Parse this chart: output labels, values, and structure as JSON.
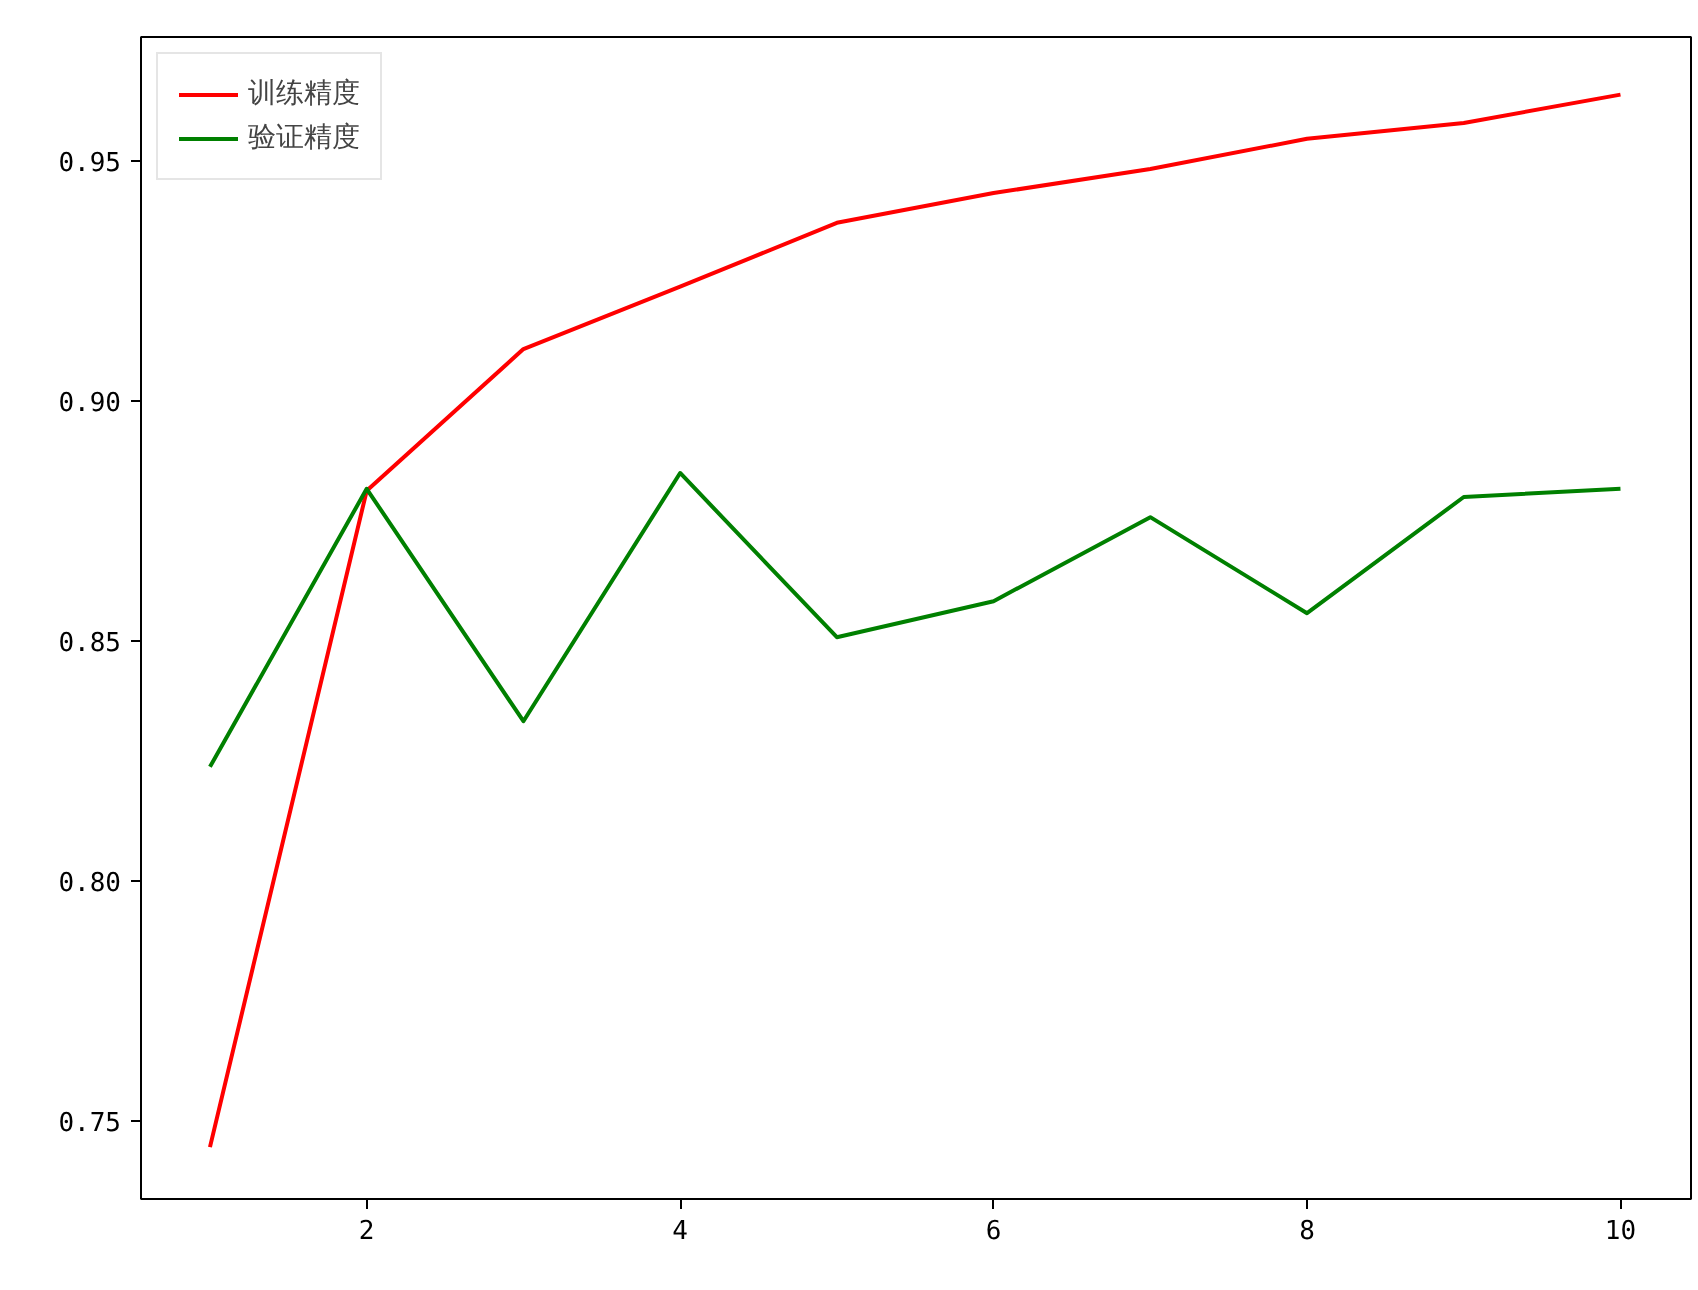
{
  "chart_data": {
    "type": "line",
    "x": [
      1,
      2,
      3,
      4,
      5,
      6,
      7,
      8,
      9,
      10
    ],
    "series": [
      {
        "name": "训练精度",
        "color": "#ff0000",
        "values": [
          0.7446,
          0.8813,
          0.9108,
          0.9238,
          0.9371,
          0.9433,
          0.9483,
          0.9546,
          0.9579,
          0.9638
        ]
      },
      {
        "name": "验证精度",
        "color": "#008000",
        "values": [
          0.8238,
          0.8817,
          0.8333,
          0.885,
          0.8508,
          0.8583,
          0.8758,
          0.8558,
          0.88,
          0.8817
        ]
      }
    ],
    "xlim": [
      0.56,
      10.45
    ],
    "ylim": [
      0.7338,
      0.9758
    ],
    "xticks": [
      2,
      4,
      6,
      8,
      10
    ],
    "yticks": [
      {
        "value": 0.75,
        "label": "0.75"
      },
      {
        "value": 0.8,
        "label": "0.80"
      },
      {
        "value": 0.85,
        "label": "0.85"
      },
      {
        "value": 0.9,
        "label": "0.90"
      },
      {
        "value": 0.95,
        "label": "0.95"
      }
    ],
    "grid": false,
    "legend": "top left",
    "marker": "none",
    "line_style": "solid"
  }
}
